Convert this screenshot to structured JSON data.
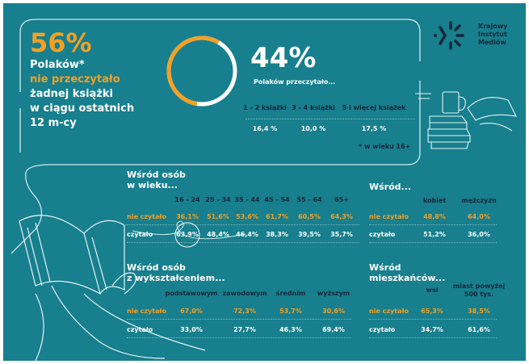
{
  "headline": {
    "pct": "56%",
    "line1": "Polaków*",
    "line2": "nie przeczytało",
    "line3": "żadnej książki",
    "line4": "w ciągu  ostatnich",
    "line5": "12 m-cy"
  },
  "donut": {
    "not_read": 56,
    "read": 44,
    "colors": {
      "not_read": "#f3a024",
      "read": "#ffffff"
    }
  },
  "read": {
    "pct": "44%",
    "subtitle": "Polaków przeczytało...",
    "headers": [
      "1 - 2 książki",
      "3 - 4 książki",
      "5 i więcej książek"
    ],
    "values": [
      "16,4 %",
      "10,0 %",
      "17,5 %"
    ],
    "footnote": "*  w wieku 16+"
  },
  "logo": {
    "line1": "Krajowy",
    "line2": "Instytut",
    "line3": "Mediów"
  },
  "rows": {
    "not_read": "nie czytało",
    "read": "czytało"
  },
  "age": {
    "title1": "Wśród osób",
    "title2": "w wieku...",
    "headers": [
      "16 - 24",
      "25 - 34",
      "35 - 44",
      "45 - 54",
      "55 - 64",
      "65+"
    ],
    "not_read": [
      "36,1%",
      "51,6%",
      "53,6%",
      "61,7%",
      "60,5%",
      "64,3%"
    ],
    "read": [
      "63,9%",
      "48,4%",
      "46,4%",
      "38,3%",
      "39,5%",
      "35,7%"
    ]
  },
  "gender": {
    "title": "Wśród...",
    "headers": [
      "kobiet",
      "mężczyzn"
    ],
    "not_read": [
      "48,8%",
      "64,0%"
    ],
    "read": [
      "51,2%",
      "36,0%"
    ]
  },
  "education": {
    "title1": "Wśród osób",
    "title2": "z wykształceniem...",
    "headers": [
      "podstawowym",
      "zawodowym",
      "średnim",
      "wyższym"
    ],
    "not_read": [
      "67,0%",
      "72,3%",
      "53,7%",
      "30,6%"
    ],
    "read": [
      "33,0%",
      "27,7%",
      "46,3%",
      "69,4%"
    ]
  },
  "residence": {
    "title1": "Wśród",
    "title2": "mieszkańców...",
    "headers": [
      "wsi",
      "miast  powyżej",
      "500 tys."
    ],
    "not_read": [
      "65,3%",
      "38,5%"
    ],
    "read": [
      "34,7%",
      "61,6%"
    ]
  },
  "colors": {
    "bg": "#177f8d",
    "accent": "#f3a024",
    "dark": "#15273a"
  }
}
